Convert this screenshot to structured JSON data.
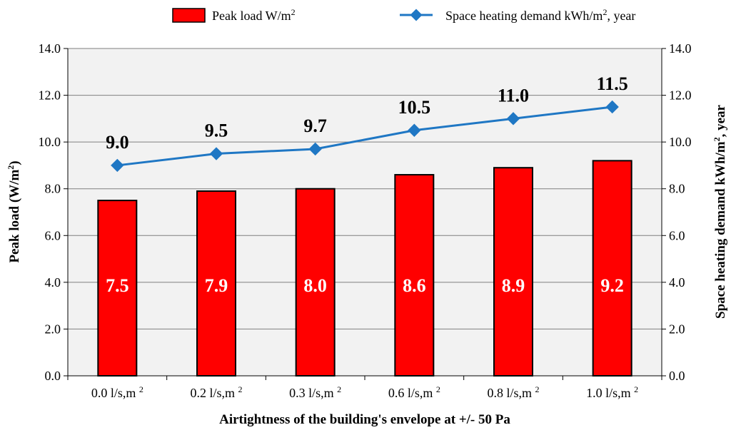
{
  "chart_data": {
    "type": "bar+line",
    "categories": [
      "0.0 l/s,m 2",
      "0.2 l/s,m 2",
      "0.3 l/s,m 2",
      "0.6 l/s,m 2",
      "0.8 l/s,m 2",
      "1.0 l/s,m 2"
    ],
    "category_base": [
      "0.0 l/s,m",
      "0.2 l/s,m",
      "0.3 l/s,m",
      "0.6 l/s,m",
      "0.8 l/s,m",
      "1.0 l/s,m"
    ],
    "category_sup": "2",
    "series": [
      {
        "name_base": "Peak load W/m",
        "name_sup": "2",
        "name_tail": "",
        "type": "bar",
        "axis": "left",
        "color": "#ff0000",
        "values": [
          7.5,
          7.9,
          8.0,
          8.6,
          8.9,
          9.2
        ],
        "labels": [
          "7.5",
          "7.9",
          "8.0",
          "8.6",
          "8.9",
          "9.2"
        ]
      },
      {
        "name_base": "Space heating demand kWh/m",
        "name_sup": "2",
        "name_tail": ", year",
        "type": "line",
        "axis": "right",
        "color": "#1f77c4",
        "values": [
          9.0,
          9.5,
          9.7,
          10.5,
          11.0,
          11.5
        ],
        "labels": [
          "9.0",
          "9.5",
          "9.7",
          "10.5",
          "11.0",
          "11.5"
        ]
      }
    ],
    "xlabel": "Airtightness  of the building's  envelope at +/- 50 Pa",
    "ylabel_left": {
      "base": "Peak load (W/m",
      "sup": "2",
      "tail": ")"
    },
    "ylabel_right": {
      "base": "Space heating demand kWh/m",
      "sup": "2",
      "tail": ",  year"
    },
    "ylim": [
      0,
      14
    ],
    "ticks": [
      "0.0",
      "2.0",
      "4.0",
      "6.0",
      "8.0",
      "10.0",
      "12.0",
      "14.0"
    ],
    "grid": true,
    "legend_position": "top",
    "plot_background": "#f2f2f2"
  }
}
